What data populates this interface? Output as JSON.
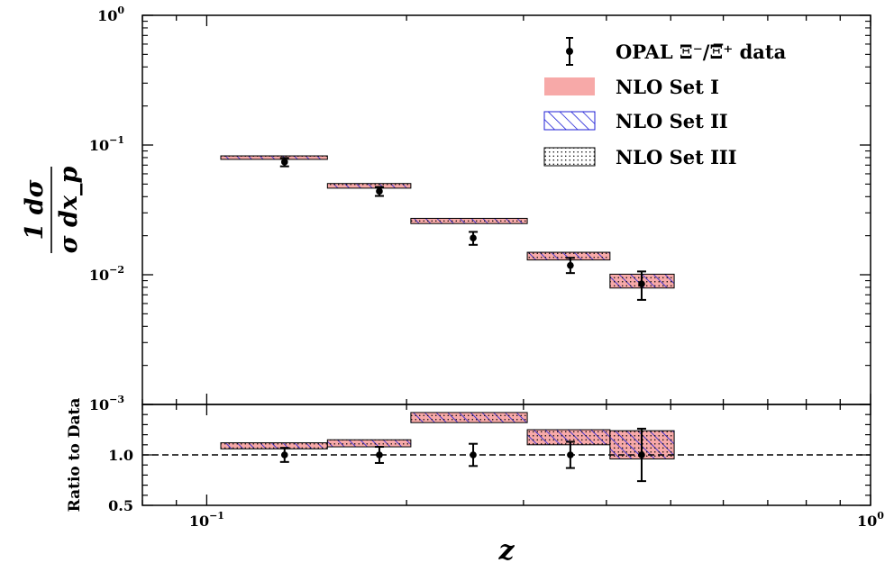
{
  "chart_data": {
    "type": "scatter",
    "xlabel": "z",
    "xscale": "log",
    "xlim": [
      0.08,
      1.0
    ],
    "x_ticks": [
      {
        "value": 0.1,
        "base": "10",
        "exp": "−1"
      },
      {
        "value": 1.0,
        "base": "10",
        "exp": "0"
      }
    ],
    "legend_position": "top-right",
    "top_panel": {
      "ylabel": "1 dσ / σ dx_p",
      "yscale": "log",
      "ylim": [
        0.001,
        1.0
      ],
      "y_ticks": [
        {
          "value": 1.0,
          "base": "10",
          "exp": "0"
        },
        {
          "value": 0.1,
          "base": "10",
          "exp": "−1"
        },
        {
          "value": 0.01,
          "base": "10",
          "exp": "−2"
        },
        {
          "value": 0.001,
          "base": "10",
          "exp": "−3"
        }
      ],
      "data_points": [
        {
          "x": 0.131,
          "y": 0.074,
          "yerr_low": 0.0055,
          "yerr_high": 0.0055
        },
        {
          "x": 0.182,
          "y": 0.044,
          "yerr_low": 0.0035,
          "yerr_high": 0.0035
        },
        {
          "x": 0.252,
          "y": 0.0192,
          "yerr_low": 0.0022,
          "yerr_high": 0.0022
        },
        {
          "x": 0.353,
          "y": 0.0118,
          "yerr_low": 0.0015,
          "yerr_high": 0.0017
        },
        {
          "x": 0.452,
          "y": 0.0085,
          "yerr_low": 0.0021,
          "yerr_high": 0.0021
        }
      ],
      "nlo_bands": [
        {
          "x_low": 0.105,
          "x_high": 0.152,
          "y_low": 0.0775,
          "y_high": 0.0825
        },
        {
          "x_low": 0.152,
          "x_high": 0.203,
          "y_low": 0.0465,
          "y_high": 0.0505
        },
        {
          "x_low": 0.203,
          "x_high": 0.304,
          "y_low": 0.0248,
          "y_high": 0.0272
        },
        {
          "x_low": 0.304,
          "x_high": 0.405,
          "y_low": 0.013,
          "y_high": 0.0149
        },
        {
          "x_low": 0.405,
          "x_high": 0.506,
          "y_low": 0.0079,
          "y_high": 0.0101
        }
      ]
    },
    "ratio_panel": {
      "ylabel": "Ratio to Data",
      "ylim": [
        0.5,
        1.5
      ],
      "y_ticks": [
        {
          "value": 1.0,
          "label": "1.0"
        },
        {
          "value": 0.5,
          "label": "0.5"
        }
      ],
      "reference_line": 1.0,
      "data_points": [
        {
          "x": 0.131,
          "y": 1.0,
          "yerr": 0.07
        },
        {
          "x": 0.182,
          "y": 1.0,
          "yerr": 0.08
        },
        {
          "x": 0.252,
          "y": 1.0,
          "yerr": 0.11
        },
        {
          "x": 0.353,
          "y": 1.0,
          "yerr": 0.13
        },
        {
          "x": 0.452,
          "y": 1.0,
          "yerr": 0.26
        }
      ],
      "nlo_bands": [
        {
          "x_low": 0.105,
          "x_high": 0.152,
          "y_low": 1.06,
          "y_high": 1.12
        },
        {
          "x_low": 0.152,
          "x_high": 0.203,
          "y_low": 1.08,
          "y_high": 1.15
        },
        {
          "x_low": 0.203,
          "x_high": 0.304,
          "y_low": 1.32,
          "y_high": 1.42
        },
        {
          "x_low": 0.304,
          "x_high": 0.405,
          "y_low": 1.1,
          "y_high": 1.25
        },
        {
          "x_low": 0.405,
          "x_high": 0.506,
          "y_low": 0.96,
          "y_high": 1.24
        }
      ]
    },
    "series": [
      {
        "name": "OPAL Ξ⁻/Ξ̅⁺ data",
        "style": "error-bar",
        "color": "#000000"
      },
      {
        "name": "NLO Set I",
        "style": "filled",
        "color": "#f7a9a8"
      },
      {
        "name": "NLO Set II",
        "style": "hatch-diagonal",
        "color": "#1f1fd6"
      },
      {
        "name": "NLO Set III",
        "style": "dotted",
        "color": "#000000"
      }
    ]
  }
}
